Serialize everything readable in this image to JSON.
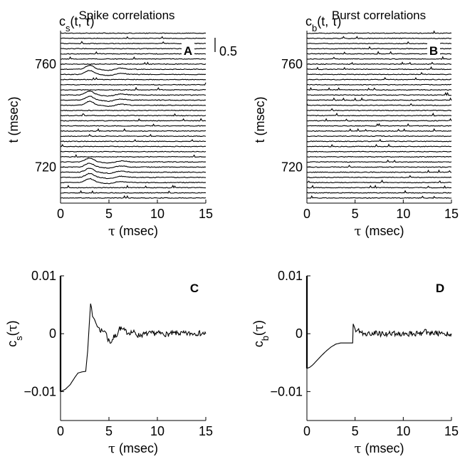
{
  "titles": {
    "a": "Spike correlations",
    "b": "Burst correlations"
  },
  "chart_data": [
    {
      "panel": "A",
      "type": "line",
      "subtype": "stacked-traces",
      "title": "Spike correlations",
      "trace_label": {
        "base": "c",
        "sub": "s",
        "rest": "(t, τ)"
      },
      "xlabel": {
        "greek": "τ",
        "rest": " (msec)"
      },
      "ylabel": "t (msec)",
      "xlim": [
        0,
        15
      ],
      "ylim": [
        706,
        773
      ],
      "xticks": [
        "0",
        "5",
        "10",
        "15"
      ],
      "yticks": [
        "720",
        "760"
      ],
      "ytick_values": [
        720,
        760
      ],
      "scale_bar_label": "0.5",
      "scale_bar_value": 0.5,
      "time_step": 2,
      "trace_times": [
        708,
        710,
        712,
        714,
        716,
        718,
        720,
        722,
        724,
        726,
        728,
        730,
        732,
        734,
        736,
        738,
        740,
        742,
        744,
        746,
        748,
        750,
        752,
        754,
        756,
        758,
        760,
        762,
        764,
        766,
        768,
        770,
        772
      ],
      "peak_times": [
        714,
        716,
        718,
        720,
        722,
        744,
        746,
        748,
        756,
        758
      ],
      "peak_tau": 3
    },
    {
      "panel": "B",
      "type": "line",
      "subtype": "stacked-traces",
      "title": "Burst correlations",
      "trace_label": {
        "base": "c",
        "sub": "b",
        "rest": "(t, τ)"
      },
      "xlabel": {
        "greek": "τ",
        "rest": " (msec)"
      },
      "ylabel": "t (msec)",
      "xlim": [
        0,
        15
      ],
      "ylim": [
        706,
        773
      ],
      "xticks": [
        "0",
        "5",
        "10",
        "15"
      ],
      "yticks": [
        "720",
        "760"
      ],
      "ytick_values": [
        720,
        760
      ],
      "time_step": 2,
      "trace_times": [
        708,
        710,
        712,
        714,
        716,
        718,
        720,
        722,
        724,
        726,
        728,
        730,
        732,
        734,
        736,
        738,
        740,
        742,
        744,
        746,
        748,
        750,
        752,
        754,
        756,
        758,
        760,
        762,
        764,
        766,
        768,
        770,
        772
      ]
    },
    {
      "panel": "C",
      "type": "line",
      "ylabel": {
        "base": "c",
        "sub": "s",
        "open": "(",
        "greek": "τ",
        "close": ")"
      },
      "xlabel": {
        "greek": "τ",
        "rest": " (msec)"
      },
      "xlim": [
        0,
        15
      ],
      "ylim": [
        -0.015,
        0.01
      ],
      "xticks": [
        "0",
        "5",
        "10",
        "15"
      ],
      "yticks": [
        "0.01",
        "0",
        "−0.01"
      ],
      "ytick_values": [
        0.01,
        0,
        -0.01
      ],
      "series": [
        {
          "x": [
            0,
            0.5,
            1,
            1.5,
            1.8,
            2.2,
            2.6,
            2.8,
            3.0,
            3.1,
            3.2,
            3.3,
            3.5,
            3.8,
            4.0,
            4.3,
            4.6,
            4.9,
            5.2,
            5.5,
            5.8,
            6.1,
            6.4,
            6.7,
            7.0,
            7.5,
            8.0,
            9.0,
            10.0,
            11.0,
            12.0,
            13.0,
            14.0,
            15.0
          ],
          "y": [
            -0.01,
            -0.0096,
            -0.0088,
            -0.0075,
            -0.0068,
            -0.0066,
            -0.0065,
            -0.003,
            0.0025,
            0.0052,
            0.0045,
            0.003,
            0.0025,
            0.0012,
            0.001,
            0.0003,
            0.0006,
            -0.001,
            -0.0015,
            -0.0006,
            -0.0002,
            0.001,
            0.0007,
            0.0004,
            0.0002,
            0.0003,
            -0.0003,
            0.0,
            0.0001,
            -0.0001,
            0.0001,
            0.0,
            0.0001,
            0.0
          ]
        }
      ]
    },
    {
      "panel": "D",
      "type": "line",
      "ylabel": {
        "base": "c",
        "sub": "b",
        "open": "(",
        "greek": "τ",
        "close": ")"
      },
      "xlabel": {
        "greek": "τ",
        "rest": " (msec)"
      },
      "xlim": [
        0,
        15
      ],
      "ylim": [
        -0.015,
        0.01
      ],
      "xticks": [
        "0",
        "5",
        "10",
        "15"
      ],
      "yticks": [
        "0.01",
        "0",
        "−0.01"
      ],
      "ytick_values": [
        0.01,
        0,
        -0.01
      ],
      "series": [
        {
          "x": [
            0,
            0.3,
            0.6,
            1.0,
            1.5,
            2.0,
            2.5,
            3.0,
            3.5,
            4.0,
            4.5,
            4.75,
            4.8,
            5.0,
            5.3,
            5.6,
            6.0,
            7.0,
            8.0,
            9.0,
            10.0,
            11.0,
            12.0,
            12.3,
            12.5,
            13.0,
            14.0,
            15.0
          ],
          "y": [
            -0.006,
            -0.0058,
            -0.0054,
            -0.0047,
            -0.0038,
            -0.003,
            -0.0023,
            -0.0018,
            -0.0016,
            -0.0016,
            -0.0016,
            -0.0016,
            0.0017,
            0.0008,
            0.0005,
            0.0002,
            0.0,
            0.0001,
            -0.0001,
            0.0001,
            0.0,
            0.0,
            0.0001,
            0.0006,
            0.0,
            0.0001,
            0.0,
            0.0
          ]
        }
      ]
    }
  ]
}
